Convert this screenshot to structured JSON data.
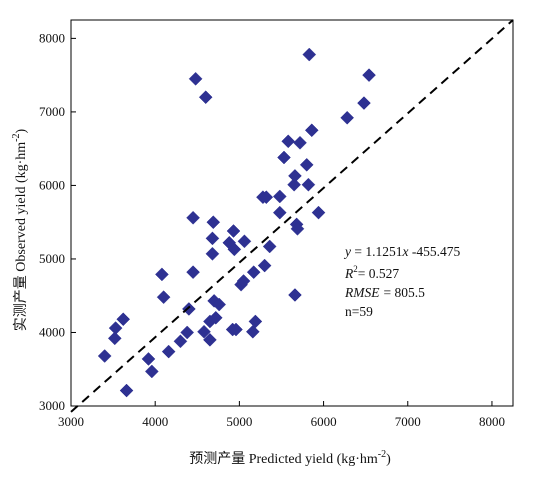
{
  "chart_data": {
    "type": "scatter",
    "xlabel": "预测产量 Predicted yield (kg·hm",
    "xlabel_sup": "-2",
    "xlabel_end": ")",
    "ylabel": "实测产量 Observed yield (kg·hm",
    "ylabel_sup": "-2",
    "ylabel_end": ")",
    "xlim": [
      3000,
      8250
    ],
    "ylim": [
      3000,
      8250
    ],
    "xticks": [
      3000,
      4000,
      5000,
      6000,
      7000,
      8000
    ],
    "yticks": [
      3000,
      4000,
      5000,
      6000,
      7000,
      8000
    ],
    "grid": false,
    "marker": "diamond",
    "colors": {
      "points": "#2e3192",
      "line": "#000000"
    },
    "regression": {
      "slope": 1.1251,
      "intercept": -455.475,
      "style": "dashed"
    },
    "annotations": {
      "equation_prefix": "y",
      "equation_body": " = 1.1251",
      "equation_x": "x",
      "equation_rest": " -455.475",
      "r2_label": "R",
      "r2_sup": "2",
      "r2_value": "= 0.527",
      "rmse_label": "RMSE",
      "rmse_value": "= 805.5",
      "n_label": "n=59"
    },
    "points": [
      [
        3400,
        3680
      ],
      [
        3520,
        3920
      ],
      [
        3530,
        4060
      ],
      [
        3620,
        4180
      ],
      [
        3660,
        3210
      ],
      [
        3920,
        3640
      ],
      [
        3960,
        3470
      ],
      [
        4080,
        4790
      ],
      [
        4100,
        4480
      ],
      [
        4160,
        3740
      ],
      [
        4300,
        3880
      ],
      [
        4380,
        4000
      ],
      [
        4400,
        4320
      ],
      [
        4450,
        5560
      ],
      [
        4450,
        4820
      ],
      [
        4480,
        7450
      ],
      [
        4580,
        4010
      ],
      [
        4600,
        7200
      ],
      [
        4650,
        4150
      ],
      [
        4650,
        3900
      ],
      [
        4680,
        5070
      ],
      [
        4680,
        5280
      ],
      [
        4690,
        5500
      ],
      [
        4700,
        4430
      ],
      [
        4720,
        4200
      ],
      [
        4760,
        4380
      ],
      [
        4880,
        5220
      ],
      [
        4920,
        4040
      ],
      [
        4930,
        5380
      ],
      [
        4940,
        5130
      ],
      [
        4960,
        4040
      ],
      [
        5020,
        4650
      ],
      [
        5050,
        4700
      ],
      [
        5060,
        5240
      ],
      [
        5160,
        4010
      ],
      [
        5170,
        4820
      ],
      [
        5190,
        4150
      ],
      [
        5280,
        5840
      ],
      [
        5300,
        4910
      ],
      [
        5320,
        5840
      ],
      [
        5360,
        5170
      ],
      [
        5480,
        5850
      ],
      [
        5480,
        5630
      ],
      [
        5530,
        6380
      ],
      [
        5580,
        6600
      ],
      [
        5650,
        6010
      ],
      [
        5660,
        6130
      ],
      [
        5680,
        5470
      ],
      [
        5690,
        5410
      ],
      [
        5660,
        4510
      ],
      [
        5720,
        6580
      ],
      [
        5800,
        6280
      ],
      [
        5820,
        6010
      ],
      [
        5830,
        7780
      ],
      [
        5860,
        6750
      ],
      [
        5940,
        5630
      ],
      [
        6280,
        6920
      ],
      [
        6480,
        7120
      ],
      [
        6540,
        7500
      ]
    ]
  }
}
